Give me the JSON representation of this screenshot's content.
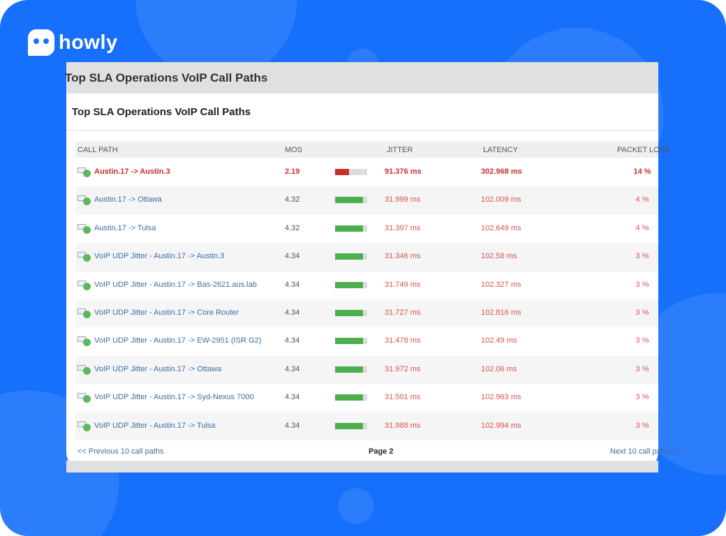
{
  "brand": {
    "name": "howly"
  },
  "window": {
    "title": "Top SLA Operations VoIP Call Paths"
  },
  "panel": {
    "title": "Top SLA Operations VoIP Call Paths"
  },
  "table": {
    "columns": [
      "CALL PATH",
      "MOS",
      "JITTER",
      "LATENCY",
      "PACKET LOSS"
    ],
    "rows": [
      {
        "path": "Austin.17 -> Austin.3",
        "mos": "2.19",
        "jitter": "91.376 ms",
        "latency": "302.968 ms",
        "loss": "14 %",
        "status": "critical"
      },
      {
        "path": "Austin.17 -> Ottawa",
        "mos": "4.32",
        "jitter": "31.999 ms",
        "latency": "102.009 ms",
        "loss": "4 %",
        "status": "ok"
      },
      {
        "path": "Austin.17 -> Tulsa",
        "mos": "4.32",
        "jitter": "31.397 ms",
        "latency": "102.649 ms",
        "loss": "4 %",
        "status": "ok"
      },
      {
        "path": "VoIP UDP Jitter - Austin.17 -> Austin.3",
        "mos": "4.34",
        "jitter": "31.346 ms",
        "latency": "102.58 ms",
        "loss": "3 %",
        "status": "ok"
      },
      {
        "path": "VoIP UDP Jitter - Austin.17 -> Bas-2621.aus.lab",
        "mos": "4.34",
        "jitter": "31.749 ms",
        "latency": "102.327 ms",
        "loss": "3 %",
        "status": "ok"
      },
      {
        "path": "VoIP UDP Jitter - Austin.17 -> Core Router",
        "mos": "4.34",
        "jitter": "31.727 ms",
        "latency": "102.816 ms",
        "loss": "3 %",
        "status": "ok"
      },
      {
        "path": "VoIP UDP Jitter - Austin.17 -> EW-2951 (ISR G2)",
        "mos": "4.34",
        "jitter": "31.478 ms",
        "latency": "102.49 ms",
        "loss": "3 %",
        "status": "ok"
      },
      {
        "path": "VoIP UDP Jitter - Austin.17 -> Ottawa",
        "mos": "4.34",
        "jitter": "31.972 ms",
        "latency": "102.06 ms",
        "loss": "3 %",
        "status": "ok"
      },
      {
        "path": "VoIP UDP Jitter - Austin.17 -> Syd-Nexus 7000",
        "mos": "4.34",
        "jitter": "31.501 ms",
        "latency": "102.963 ms",
        "loss": "3 %",
        "status": "ok"
      },
      {
        "path": "VoIP UDP Jitter - Austin.17 -> Tulsa",
        "mos": "4.34",
        "jitter": "31.988 ms",
        "latency": "102.994 ms",
        "loss": "3 %",
        "status": "ok"
      }
    ]
  },
  "pagination": {
    "prev": "<< Previous 10 call paths",
    "page": "Page 2",
    "next": "Next 10 call paths >>"
  },
  "colors": {
    "background": "#1670fb",
    "bad": "#c9302c",
    "good": "#4cae4c",
    "link": "#3a6ea5"
  },
  "mos_scale_max": 5
}
